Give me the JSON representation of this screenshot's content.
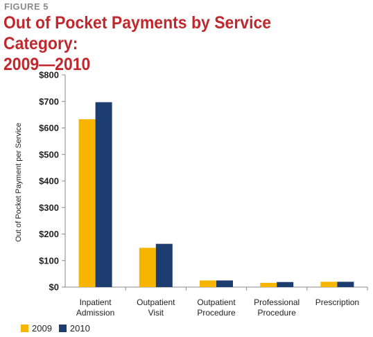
{
  "figure_label": "FIGURE 5",
  "title_line1": "Out of Pocket Payments by Service Category:",
  "title_line2": "2009—2010",
  "colors": {
    "2009": "#f7b500",
    "2010": "#1d3d70"
  },
  "chart_data": {
    "type": "bar",
    "title": "Out of Pocket Payments by Service Category: 2009—2010",
    "ylabel": "Out of Pocket Payment per Service",
    "xlabel": "",
    "ylim": [
      0,
      800
    ],
    "yticks": [
      "$0",
      "$100",
      "$200",
      "$300",
      "$400",
      "$500",
      "$600",
      "$700",
      "$800"
    ],
    "categories": [
      [
        "Inpatient",
        "Admission"
      ],
      [
        "Outpatient",
        "Visit"
      ],
      [
        "Outpatient",
        "Procedure"
      ],
      [
        "Professional",
        "Procedure"
      ],
      [
        "Prescription"
      ]
    ],
    "series": [
      {
        "name": "2009",
        "values": [
          633,
          148,
          25,
          16,
          20
        ]
      },
      {
        "name": "2010",
        "values": [
          697,
          163,
          25,
          19,
          20
        ]
      }
    ],
    "legend": "bottom-left",
    "grid": false
  }
}
